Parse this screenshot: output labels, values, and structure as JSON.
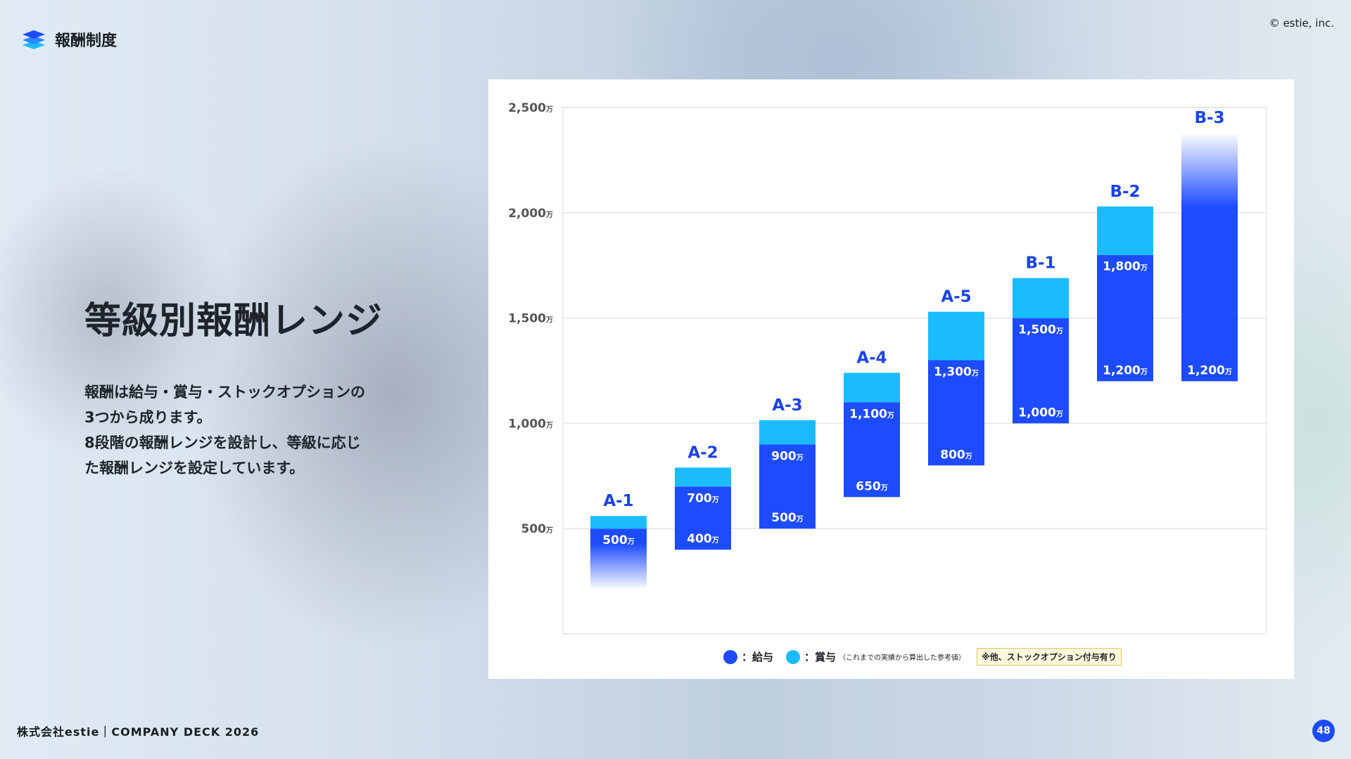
{
  "header": {
    "section_title": "報酬制度",
    "copyright": "© estie, inc.",
    "logo_icon": "layers-icon"
  },
  "main": {
    "title": "等級別報酬レンジ",
    "description": [
      "報酬は給与・賞与・ストックオプションの",
      "3つから成ります。",
      "8段階の報酬レンジを設計し、等級に応じ",
      "た報酬レンジを設定しています。"
    ]
  },
  "footer": {
    "text": "株式会社estie｜COMPANY DECK 2026",
    "page": "48"
  },
  "legend": {
    "salary": "：給与",
    "bonus": "：賞与",
    "bonus_note": "（これまでの実績から算出した参考値）",
    "note": "※他、ストックオプション付与有り"
  },
  "colors": {
    "salary": "#1d4bff",
    "bonus": "#1bbcff",
    "label": "#1a44e6"
  },
  "chart_data": {
    "type": "bar",
    "subtype": "floating-stacked-range",
    "unit": "万",
    "ylim": [
      0,
      2500
    ],
    "yticks": [
      500,
      1000,
      1500,
      2000,
      2500
    ],
    "ytick_labels": [
      "500",
      "1,000",
      "1,500",
      "2,000",
      "2,500"
    ],
    "grid": true,
    "legend_placement": "bottom",
    "categories": [
      "A-1",
      "A-2",
      "A-3",
      "A-4",
      "A-5",
      "B-1",
      "B-2",
      "B-3"
    ],
    "salary_min": [
      null,
      400,
      500,
      650,
      800,
      1000,
      1200,
      1200
    ],
    "salary_max": [
      500,
      700,
      900,
      1100,
      1300,
      1500,
      1800,
      null
    ],
    "bonus_top": [
      560,
      790,
      1015,
      1240,
      1530,
      1690,
      2030,
      null
    ],
    "salary_min_labels": [
      "",
      "400",
      "500",
      "650",
      "800",
      "1,000",
      "1,200",
      "1,200"
    ],
    "salary_max_labels": [
      "500",
      "700",
      "900",
      "1,100",
      "1,300",
      "1,500",
      "1,800",
      ""
    ],
    "faded_bottom": [
      210,
      null,
      null,
      null,
      null,
      null,
      null,
      null
    ],
    "faded_top": [
      null,
      null,
      null,
      null,
      null,
      null,
      null,
      2380
    ]
  }
}
